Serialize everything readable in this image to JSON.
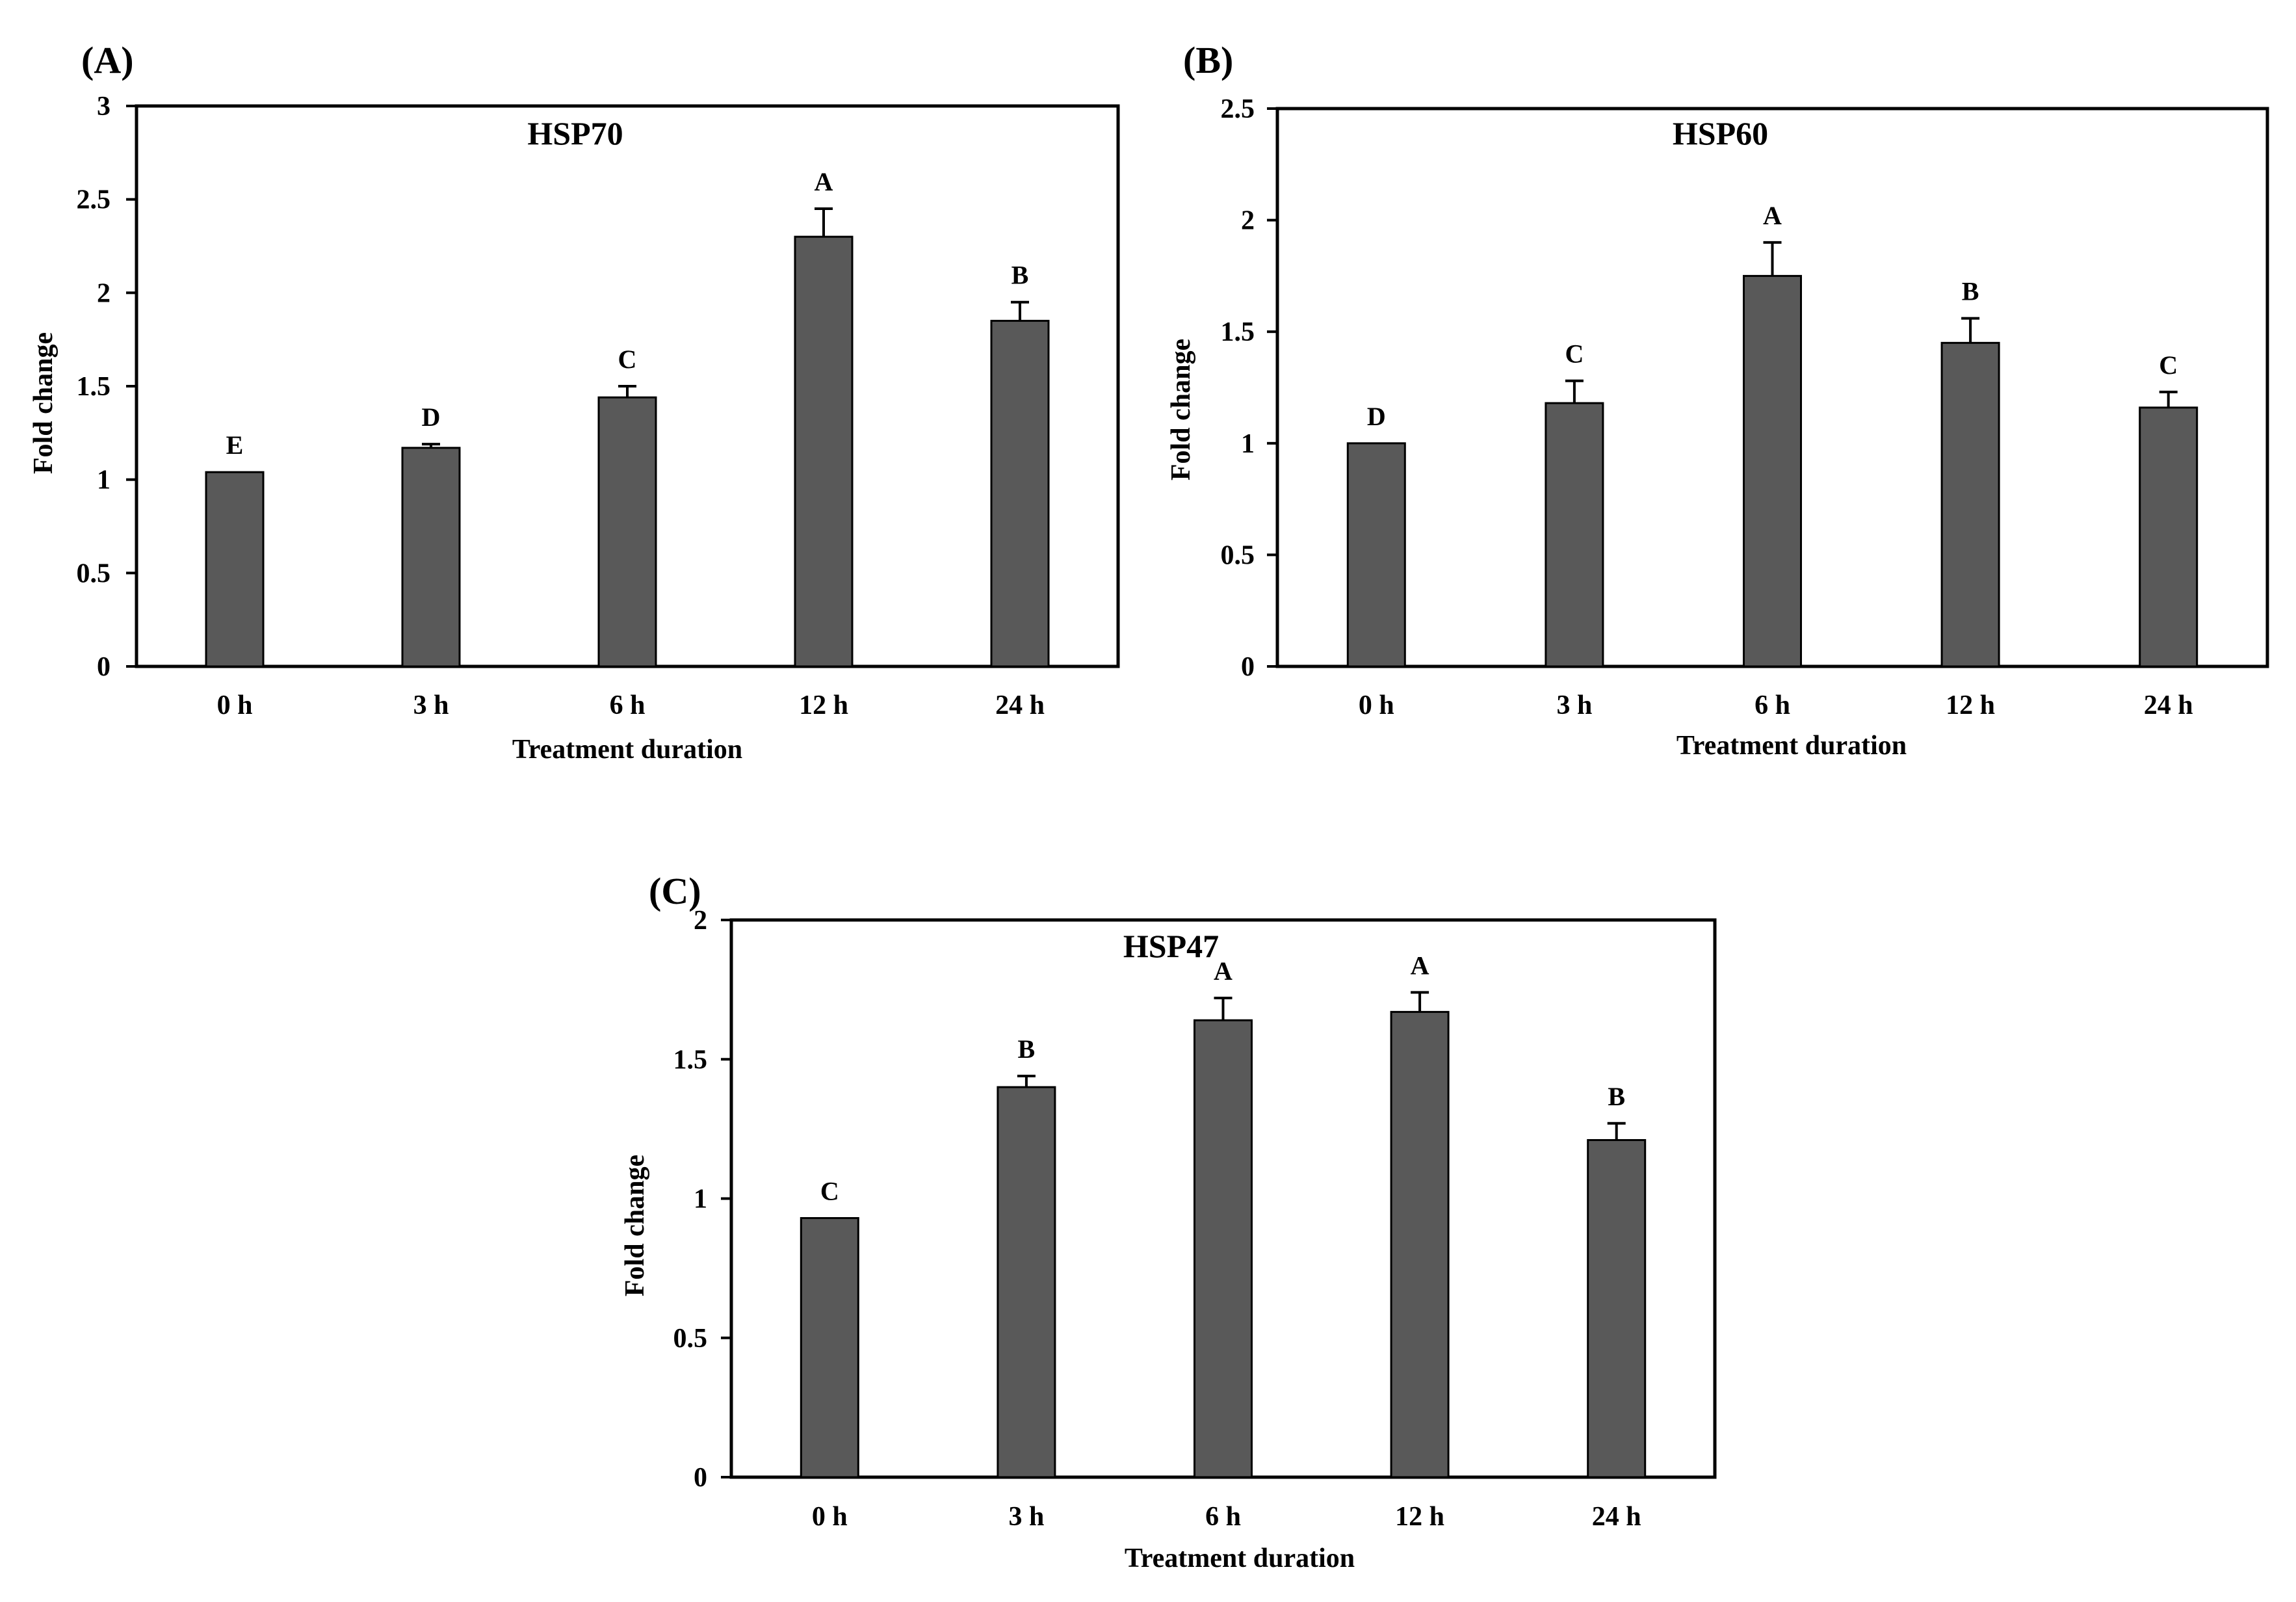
{
  "colors": {
    "bar": "#595959",
    "axis": "#000000",
    "background": "#ffffff"
  },
  "chart_data": [
    {
      "panel": "(A)",
      "type": "bar",
      "title": "HSP70",
      "xlabel": "Treatment duration",
      "ylabel": "Fold change",
      "categories": [
        "0 h",
        "3 h",
        "6 h",
        "12 h",
        "24 h"
      ],
      "values": [
        1.04,
        1.17,
        1.44,
        2.3,
        1.85
      ],
      "errors": [
        0.0,
        0.02,
        0.06,
        0.15,
        0.1
      ],
      "significance": [
        "E",
        "D",
        "C",
        "A",
        "B"
      ],
      "ylim": [
        0,
        3
      ],
      "yticks": [
        0,
        0.5,
        1,
        1.5,
        2,
        2.5,
        3
      ],
      "ytick_labels": [
        "0",
        "0.5",
        "1",
        "1.5",
        "2",
        "2.5",
        "3"
      ]
    },
    {
      "panel": "(B)",
      "type": "bar",
      "title": "HSP60",
      "xlabel": "Treatment duration",
      "ylabel": "Fold change",
      "categories": [
        "0 h",
        "3 h",
        "6 h",
        "12 h",
        "24 h"
      ],
      "values": [
        1.0,
        1.18,
        1.75,
        1.45,
        1.16
      ],
      "errors": [
        0.0,
        0.1,
        0.15,
        0.11,
        0.07
      ],
      "significance": [
        "D",
        "C",
        "A",
        "B",
        "C"
      ],
      "ylim": [
        0,
        2.5
      ],
      "yticks": [
        0,
        0.5,
        1,
        1.5,
        2,
        2.5
      ],
      "ytick_labels": [
        "0",
        "0.5",
        "1",
        "1.5",
        "2",
        "2.5"
      ]
    },
    {
      "panel": "(C)",
      "type": "bar",
      "title": "HSP47",
      "xlabel": "Treatment duration",
      "ylabel": "Fold change",
      "categories": [
        "0 h",
        "3 h",
        "6 h",
        "12 h",
        "24 h"
      ],
      "values": [
        0.93,
        1.4,
        1.64,
        1.67,
        1.21
      ],
      "errors": [
        0.0,
        0.04,
        0.08,
        0.07,
        0.06
      ],
      "significance": [
        "C",
        "B",
        "A",
        "A",
        "B"
      ],
      "ylim": [
        0,
        2
      ],
      "yticks": [
        0,
        0.5,
        1,
        1.5,
        2
      ],
      "ytick_labels": [
        "0",
        "0.5",
        "1",
        "1.5",
        "2"
      ]
    }
  ]
}
